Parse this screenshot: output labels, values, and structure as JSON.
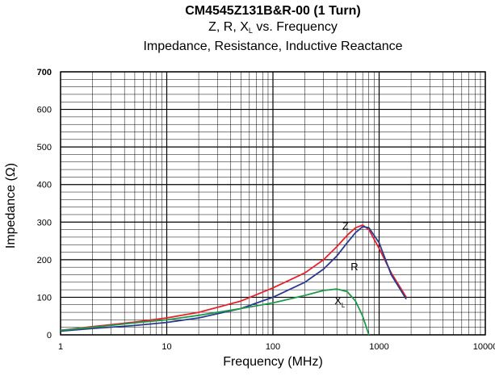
{
  "header": {
    "title": "CM4545Z131B&R-00 (1 Turn)",
    "subtitle_main": "Z, R, X",
    "subtitle_sub": "L",
    "subtitle_rest": " vs. Frequency",
    "subtitle2": "Impedance, Resistance, Inductive Reactance"
  },
  "chart_data": {
    "type": "line",
    "title": "CM4545Z131B&R-00 (1 Turn)",
    "subtitle": "Z, R, XL vs. Frequency — Impedance, Resistance, Inductive Reactance",
    "xlabel": "Frequency (MHz)",
    "ylabel": "Impedance (Ω)",
    "x_scale": "log",
    "xlim": [
      1,
      10000
    ],
    "ylim": [
      0,
      700
    ],
    "x_ticks": [
      "1",
      "10",
      "100",
      "1000",
      "10000"
    ],
    "y_ticks": [
      "0",
      "100",
      "200",
      "300",
      "400",
      "500",
      "600",
      "700"
    ],
    "grid": true,
    "series": [
      {
        "name": "Z",
        "label_main": "Z",
        "label_sub": "",
        "color": "#e8202a",
        "x": [
          1,
          2,
          5,
          10,
          20,
          50,
          100,
          200,
          300,
          400,
          500,
          600,
          700,
          800,
          1000,
          1300,
          1800
        ],
        "y": [
          12,
          22,
          34,
          45,
          60,
          90,
          125,
          165,
          200,
          235,
          265,
          285,
          292,
          280,
          230,
          165,
          100
        ]
      },
      {
        "name": "R",
        "label_main": "R",
        "label_sub": "",
        "color": "#2b3a8f",
        "x": [
          1,
          2,
          5,
          10,
          20,
          50,
          100,
          200,
          300,
          400,
          500,
          600,
          700,
          800,
          1000,
          1300,
          1800
        ],
        "y": [
          10,
          17,
          25,
          33,
          45,
          70,
          100,
          140,
          175,
          210,
          245,
          272,
          288,
          285,
          245,
          160,
          95
        ]
      },
      {
        "name": "XL",
        "label_main": "X",
        "label_sub": "L",
        "color": "#1f9a4a",
        "x": [
          1,
          2,
          5,
          10,
          20,
          50,
          100,
          200,
          300,
          400,
          500,
          600,
          700,
          800
        ],
        "y": [
          12,
          20,
          32,
          40,
          52,
          70,
          85,
          105,
          118,
          122,
          115,
          90,
          50,
          0
        ]
      }
    ]
  }
}
